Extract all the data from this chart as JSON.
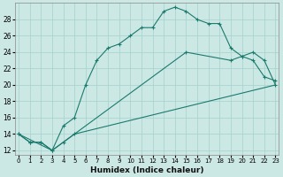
{
  "xlabel": "Humidex (Indice chaleur)",
  "background_color": "#cce8e4",
  "grid_color": "#aad4d0",
  "line_color": "#1a7a6e",
  "x_ticks": [
    0,
    1,
    2,
    3,
    4,
    5,
    6,
    7,
    8,
    9,
    10,
    11,
    12,
    13,
    14,
    15,
    16,
    17,
    18,
    19,
    20,
    21,
    22,
    23
  ],
  "y_ticks": [
    12,
    14,
    16,
    18,
    20,
    22,
    24,
    26,
    28
  ],
  "ylim": [
    11.5,
    30
  ],
  "xlim": [
    -0.3,
    23.3
  ],
  "curve1_x": [
    0,
    1,
    2,
    3,
    4,
    5,
    6,
    7,
    8,
    9,
    10,
    11,
    12,
    13,
    14,
    15,
    16,
    17,
    18,
    19,
    20,
    21,
    22,
    23
  ],
  "curve1_y": [
    14,
    13,
    13,
    12,
    15,
    16,
    20,
    23,
    24.5,
    25,
    26,
    27,
    27,
    29,
    29.5,
    29,
    28,
    27.5,
    27.5,
    24.5,
    23.5,
    23,
    21,
    20.5
  ],
  "curve2_x": [
    0,
    1,
    2,
    3,
    4,
    5,
    15,
    19,
    20,
    21,
    22,
    23
  ],
  "curve2_y": [
    14,
    13,
    13,
    12,
    13,
    14,
    24,
    23,
    23.5,
    24,
    23,
    20
  ],
  "curve3_x": [
    0,
    3,
    4,
    5,
    23
  ],
  "curve3_y": [
    14,
    12,
    13,
    14,
    20
  ]
}
